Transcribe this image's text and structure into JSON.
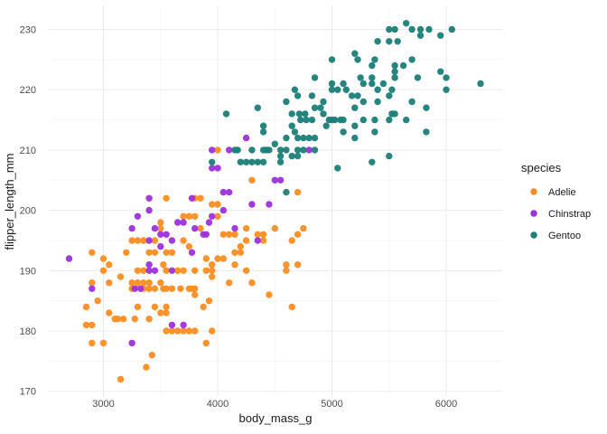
{
  "chart_data": {
    "type": "scatter",
    "title": "",
    "xlabel": "body_mass_g",
    "ylabel": "flipper_length_mm",
    "legend_title": "species",
    "legend_position": "right",
    "grid": true,
    "xlim": [
      2520,
      6480
    ],
    "ylim": [
      169,
      234
    ],
    "x_ticks": [
      3000,
      4000,
      5000,
      6000
    ],
    "y_ticks": [
      170,
      180,
      190,
      200,
      210,
      220,
      230
    ],
    "point_radius": 3.7,
    "colors": {
      "grid_major": "#EBEBEB",
      "grid_minor": "#F4F4F4",
      "tick_text": "#4D4D4D",
      "title_text": "#1a1a1a"
    },
    "series": [
      {
        "name": "Adelie",
        "color": "#FC8D22",
        "points": [
          [
            3550,
            202
          ],
          [
            3500,
            198
          ],
          [
            3500,
            197
          ],
          [
            3700,
            199
          ],
          [
            3750,
            199
          ],
          [
            3250,
            195
          ],
          [
            3300,
            195
          ],
          [
            3350,
            195
          ],
          [
            3450,
            195
          ],
          [
            3550,
            193
          ],
          [
            3600,
            193
          ],
          [
            3400,
            193
          ],
          [
            3450,
            193
          ],
          [
            2900,
            193
          ],
          [
            3000,
            192
          ],
          [
            3050,
            191
          ],
          [
            3200,
            193
          ],
          [
            4000,
            210
          ],
          [
            4300,
            205
          ],
          [
            4700,
            203
          ],
          [
            3850,
            202
          ],
          [
            3800,
            202
          ],
          [
            3950,
            201
          ],
          [
            4000,
            201
          ],
          [
            4000,
            199
          ],
          [
            3800,
            199
          ],
          [
            3850,
            197
          ],
          [
            4050,
            196
          ],
          [
            4100,
            196
          ],
          [
            4150,
            196
          ],
          [
            4250,
            197
          ],
          [
            4350,
            196
          ],
          [
            4400,
            196
          ],
          [
            4500,
            197
          ],
          [
            4250,
            195
          ],
          [
            4400,
            195
          ],
          [
            4200,
            194
          ],
          [
            4200,
            193
          ],
          [
            4150,
            193
          ],
          [
            4700,
            196
          ],
          [
            4750,
            197
          ],
          [
            4650,
            195
          ],
          [
            3900,
            192
          ],
          [
            3950,
            191
          ],
          [
            4000,
            192
          ],
          [
            4050,
            192
          ],
          [
            4150,
            191
          ],
          [
            3525,
            191
          ],
          [
            3700,
            195
          ],
          [
            3750,
            194
          ],
          [
            3000,
            190
          ],
          [
            3300,
            190
          ],
          [
            3350,
            190
          ],
          [
            3550,
            190
          ],
          [
            3650,
            190
          ],
          [
            3700,
            190
          ],
          [
            2900,
            188
          ],
          [
            3050,
            188
          ],
          [
            3150,
            189
          ],
          [
            3250,
            188
          ],
          [
            3300,
            188
          ],
          [
            3350,
            188
          ],
          [
            3400,
            188
          ],
          [
            3250,
            187
          ],
          [
            3350,
            187
          ],
          [
            3400,
            187
          ],
          [
            3450,
            187
          ],
          [
            3500,
            188
          ],
          [
            3525,
            187
          ],
          [
            3550,
            187
          ],
          [
            3600,
            187
          ],
          [
            3675,
            187
          ],
          [
            3750,
            187
          ],
          [
            3775,
            187
          ],
          [
            2850,
            184
          ],
          [
            2850,
            181
          ],
          [
            2950,
            185
          ],
          [
            3050,
            183
          ],
          [
            3125,
            182
          ],
          [
            3175,
            182
          ],
          [
            3100,
            182
          ],
          [
            3275,
            182
          ],
          [
            3400,
            182
          ],
          [
            3300,
            184
          ],
          [
            3450,
            184
          ],
          [
            3550,
            184
          ],
          [
            3500,
            183
          ],
          [
            3550,
            183
          ],
          [
            3550,
            180
          ],
          [
            3600,
            180
          ],
          [
            3650,
            180
          ],
          [
            3700,
            180
          ],
          [
            3750,
            180
          ],
          [
            2900,
            178
          ],
          [
            3000,
            178
          ],
          [
            3425,
            176
          ],
          [
            3375,
            174
          ],
          [
            3150,
            172
          ],
          [
            2900,
            181
          ],
          [
            3800,
            190
          ],
          [
            3900,
            190
          ],
          [
            3950,
            190
          ],
          [
            3950,
            189
          ],
          [
            4250,
            190
          ],
          [
            4600,
            190
          ],
          [
            4100,
            188
          ],
          [
            4300,
            188
          ],
          [
            4450,
            186
          ],
          [
            4650,
            184
          ],
          [
            3875,
            184
          ],
          [
            3925,
            185
          ],
          [
            3800,
            187
          ],
          [
            3800,
            186
          ],
          [
            3800,
            180
          ],
          [
            3950,
            180
          ],
          [
            3900,
            178
          ],
          [
            4700,
            191
          ],
          [
            4600,
            191
          ]
        ]
      },
      {
        "name": "Chinstrap",
        "color": "#9D30DC",
        "points": [
          [
            2700,
            192
          ],
          [
            2900,
            187
          ],
          [
            3250,
            178
          ],
          [
            3400,
            202
          ],
          [
            3775,
            202
          ],
          [
            3400,
            200
          ],
          [
            3300,
            199
          ],
          [
            3250,
            197
          ],
          [
            3450,
            197
          ],
          [
            3500,
            196
          ],
          [
            3550,
            196
          ],
          [
            3650,
            198
          ],
          [
            3700,
            198
          ],
          [
            3800,
            197
          ],
          [
            3500,
            194
          ],
          [
            3600,
            195
          ],
          [
            3400,
            195
          ],
          [
            3775,
            193
          ],
          [
            3400,
            191
          ],
          [
            3400,
            190
          ],
          [
            3450,
            190
          ],
          [
            3600,
            190
          ],
          [
            3950,
            210
          ],
          [
            4100,
            210
          ],
          [
            3950,
            207
          ],
          [
            4000,
            207
          ],
          [
            4500,
            205
          ],
          [
            4550,
            205
          ],
          [
            4050,
            203
          ],
          [
            4100,
            203
          ],
          [
            4300,
            201
          ],
          [
            4450,
            201
          ],
          [
            4050,
            200
          ],
          [
            3950,
            199
          ],
          [
            3925,
            198
          ],
          [
            3875,
            196
          ],
          [
            3900,
            196
          ],
          [
            4150,
            197
          ],
          [
            4350,
            195
          ],
          [
            4250,
            212
          ],
          [
            4800,
            210
          ],
          [
            3275,
            187
          ],
          [
            3325,
            187
          ],
          [
            3600,
            181
          ],
          [
            3700,
            181
          ]
        ]
      },
      {
        "name": "Gentoo",
        "color": "#1B7E78",
        "points": [
          [
            5650,
            231
          ],
          [
            5500,
            230
          ],
          [
            5550,
            230
          ],
          [
            5700,
            230
          ],
          [
            5775,
            230
          ],
          [
            5850,
            230
          ],
          [
            6050,
            230
          ],
          [
            5950,
            229
          ],
          [
            5775,
            229
          ],
          [
            5400,
            228
          ],
          [
            5500,
            228
          ],
          [
            5575,
            228
          ],
          [
            5200,
            226
          ],
          [
            5225,
            225
          ],
          [
            5375,
            225
          ],
          [
            5700,
            225
          ],
          [
            5000,
            225
          ],
          [
            5350,
            224
          ],
          [
            5550,
            224
          ],
          [
            5625,
            224
          ],
          [
            5550,
            223
          ],
          [
            5950,
            223
          ],
          [
            5250,
            222
          ],
          [
            5350,
            222
          ],
          [
            5550,
            222
          ],
          [
            5750,
            222
          ],
          [
            6000,
            222
          ],
          [
            4850,
            222
          ],
          [
            6300,
            221
          ],
          [
            5275,
            221
          ],
          [
            5350,
            221
          ],
          [
            5450,
            221
          ],
          [
            5000,
            221
          ],
          [
            5100,
            221
          ],
          [
            5000,
            220
          ],
          [
            5050,
            220
          ],
          [
            5125,
            220
          ],
          [
            5400,
            220
          ],
          [
            5525,
            220
          ],
          [
            6000,
            220
          ],
          [
            4675,
            220
          ],
          [
            5175,
            219
          ],
          [
            5225,
            219
          ],
          [
            5500,
            219
          ],
          [
            4700,
            219
          ],
          [
            4825,
            219
          ],
          [
            5275,
            218
          ],
          [
            5400,
            218
          ],
          [
            5700,
            218
          ],
          [
            4600,
            218
          ],
          [
            4925,
            218
          ],
          [
            5200,
            217
          ],
          [
            5825,
            217
          ],
          [
            4850,
            217
          ],
          [
            4900,
            217
          ],
          [
            4350,
            217
          ],
          [
            5525,
            216
          ],
          [
            5550,
            216
          ],
          [
            4075,
            216
          ],
          [
            4650,
            216
          ],
          [
            4715,
            216
          ],
          [
            4765,
            216
          ],
          [
            4925,
            216
          ],
          [
            5275,
            215
          ],
          [
            5375,
            215
          ],
          [
            5500,
            215
          ],
          [
            5650,
            215
          ],
          [
            4775,
            215
          ],
          [
            4725,
            215
          ],
          [
            4825,
            215
          ],
          [
            4975,
            215
          ],
          [
            5000,
            215
          ],
          [
            5025,
            215
          ],
          [
            5075,
            215
          ],
          [
            5100,
            215
          ],
          [
            5200,
            214
          ],
          [
            4950,
            214
          ],
          [
            4650,
            214
          ],
          [
            4400,
            214
          ],
          [
            5825,
            213
          ],
          [
            5375,
            213
          ],
          [
            4400,
            213
          ],
          [
            4675,
            213
          ],
          [
            5100,
            213
          ],
          [
            5200,
            212
          ],
          [
            4600,
            212
          ],
          [
            4700,
            212
          ],
          [
            4750,
            212
          ],
          [
            4800,
            212
          ],
          [
            4850,
            212
          ],
          [
            4500,
            211
          ],
          [
            4150,
            210
          ],
          [
            4175,
            210
          ],
          [
            4300,
            210
          ],
          [
            4400,
            210
          ],
          [
            4425,
            210
          ],
          [
            4450,
            210
          ],
          [
            4550,
            210
          ],
          [
            4600,
            210
          ],
          [
            4700,
            210
          ],
          [
            4750,
            210
          ],
          [
            4850,
            210
          ],
          [
            4550,
            209
          ],
          [
            4650,
            209
          ],
          [
            4700,
            209
          ],
          [
            5500,
            209
          ],
          [
            3950,
            208
          ],
          [
            4200,
            208
          ],
          [
            4250,
            208
          ],
          [
            4300,
            208
          ],
          [
            4350,
            208
          ],
          [
            4400,
            208
          ],
          [
            4550,
            208
          ],
          [
            5350,
            208
          ],
          [
            5050,
            207
          ],
          [
            4600,
            203
          ]
        ]
      }
    ]
  }
}
